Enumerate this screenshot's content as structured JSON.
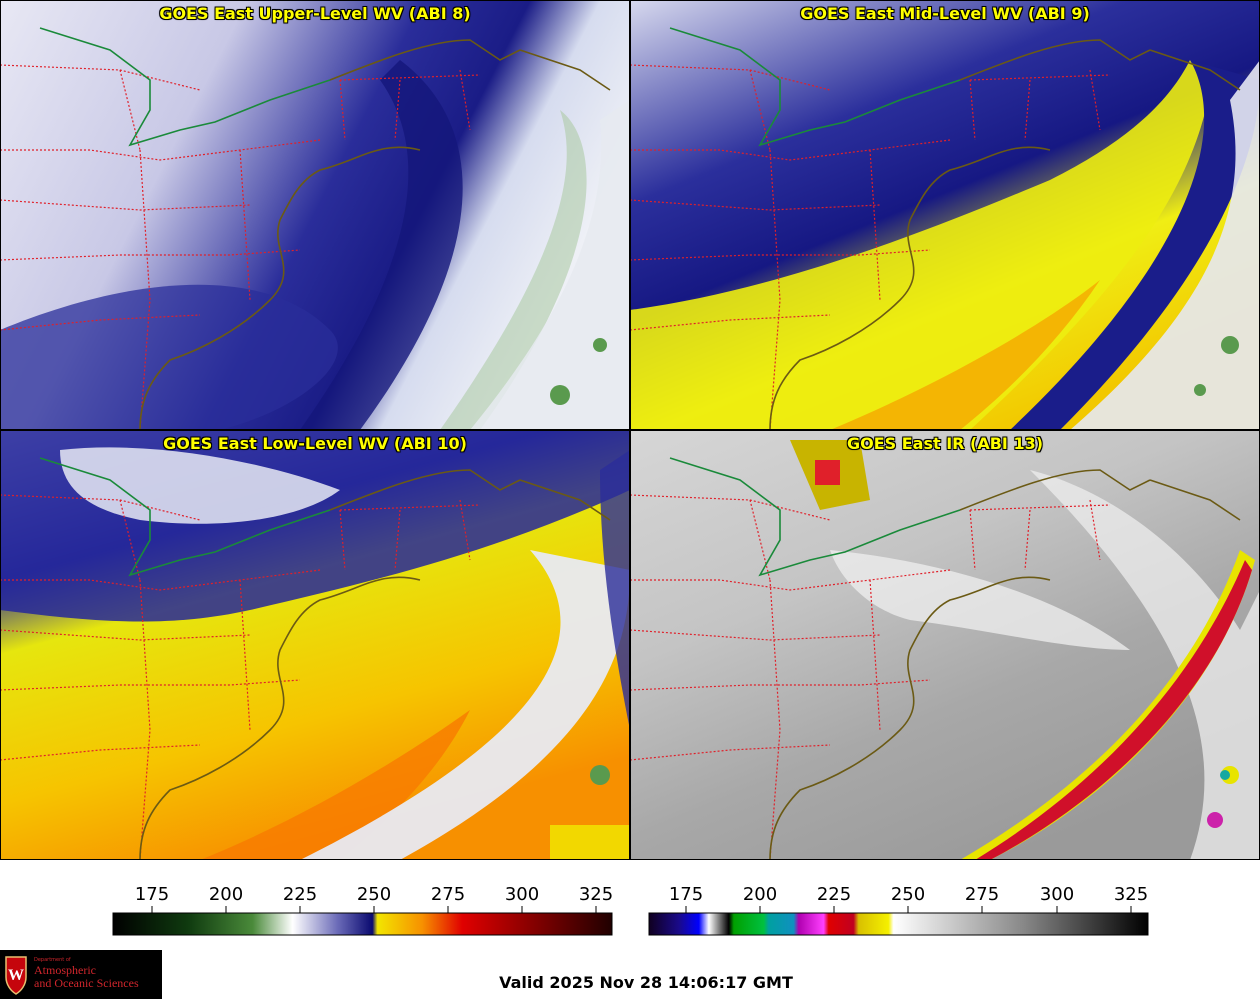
{
  "panels": [
    {
      "id": "upper",
      "title": "GOES East Upper-Level WV (ABI 8)"
    },
    {
      "id": "mid",
      "title": "GOES East Mid-Level WV (ABI 9)"
    },
    {
      "id": "low",
      "title": "GOES East Low-Level WV (ABI 10)"
    },
    {
      "id": "ir",
      "title": "GOES East IR (ABI 13)"
    }
  ],
  "colorbars": {
    "wv": {
      "ticks": [
        "175",
        "200",
        "225",
        "250",
        "275",
        "300",
        "325"
      ]
    },
    "ir": {
      "ticks": [
        "175",
        "200",
        "225",
        "250",
        "275",
        "300",
        "325"
      ]
    }
  },
  "logo": {
    "line1": "Department of",
    "line2": "Atmospheric",
    "line3": "and Oceanic Sciences"
  },
  "valid_time": "Valid 2025 Nov 28 14:06:17 GMT",
  "colors": {
    "title": "#ffff00",
    "state_border": "#e0202a",
    "coast": "#6b5a14",
    "canada_border": "#1a8a3a"
  }
}
